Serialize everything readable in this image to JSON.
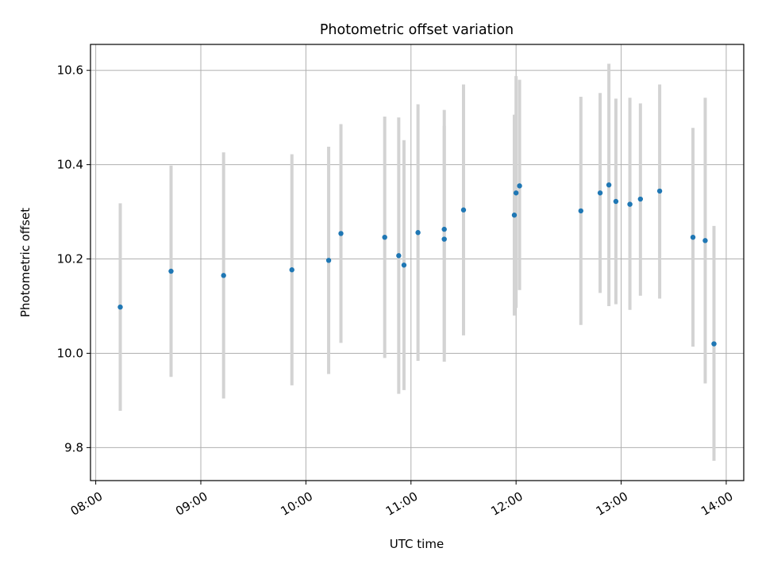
{
  "chart_data": {
    "type": "scatter",
    "title": "Photometric offset variation",
    "xlabel": "UTC time",
    "ylabel": "Photometric offset",
    "x_tick_labels": [
      "08:00",
      "09:00",
      "10:00",
      "11:00",
      "12:00",
      "13:00",
      "14:00"
    ],
    "y_tick_labels": [
      "9.8",
      "10.0",
      "10.2",
      "10.4",
      "10.6"
    ],
    "y_ticks": [
      9.8,
      10.0,
      10.2,
      10.4,
      10.6
    ],
    "xlim": [
      "07:57",
      "14:10"
    ],
    "ylim": [
      9.73,
      10.655
    ],
    "grid": true,
    "marker_color": "#1f77b4",
    "errorbar_color": "#d3d3d3",
    "series": [
      {
        "points": [
          {
            "x": "08:14",
            "y": 10.098,
            "lo": 9.878,
            "hi": 10.318
          },
          {
            "x": "08:43",
            "y": 10.174,
            "lo": 9.95,
            "hi": 10.398
          },
          {
            "x": "09:13",
            "y": 10.165,
            "lo": 9.904,
            "hi": 10.426
          },
          {
            "x": "09:52",
            "y": 10.177,
            "lo": 9.932,
            "hi": 10.422
          },
          {
            "x": "10:13",
            "y": 10.197,
            "lo": 9.956,
            "hi": 10.438
          },
          {
            "x": "10:20",
            "y": 10.254,
            "lo": 10.022,
            "hi": 10.486
          },
          {
            "x": "10:45",
            "y": 10.246,
            "lo": 9.99,
            "hi": 10.502
          },
          {
            "x": "10:53",
            "y": 10.207,
            "lo": 9.914,
            "hi": 10.5
          },
          {
            "x": "10:56",
            "y": 10.187,
            "lo": 9.922,
            "hi": 10.452
          },
          {
            "x": "11:04",
            "y": 10.256,
            "lo": 9.984,
            "hi": 10.528
          },
          {
            "x": "11:19",
            "y": 10.242,
            "lo": 10.002,
            "hi": 10.482
          },
          {
            "x": "11:19",
            "y": 10.263,
            "lo": 9.982,
            "hi": 10.516
          },
          {
            "x": "11:30",
            "y": 10.304,
            "lo": 10.038,
            "hi": 10.57
          },
          {
            "x": "11:59",
            "y": 10.293,
            "lo": 10.08,
            "hi": 10.506
          },
          {
            "x": "12:00",
            "y": 10.34,
            "lo": 10.096,
            "hi": 10.588
          },
          {
            "x": "12:02",
            "y": 10.355,
            "lo": 10.134,
            "hi": 10.58
          },
          {
            "x": "12:37",
            "y": 10.302,
            "lo": 10.06,
            "hi": 10.544
          },
          {
            "x": "12:48",
            "y": 10.34,
            "lo": 10.128,
            "hi": 10.552
          },
          {
            "x": "12:53",
            "y": 10.357,
            "lo": 10.1,
            "hi": 10.614
          },
          {
            "x": "12:57",
            "y": 10.322,
            "lo": 10.104,
            "hi": 10.54
          },
          {
            "x": "13:05",
            "y": 10.316,
            "lo": 10.092,
            "hi": 10.542
          },
          {
            "x": "13:11",
            "y": 10.327,
            "lo": 10.122,
            "hi": 10.53
          },
          {
            "x": "13:22",
            "y": 10.344,
            "lo": 10.116,
            "hi": 10.57
          },
          {
            "x": "13:41",
            "y": 10.246,
            "lo": 10.014,
            "hi": 10.478
          },
          {
            "x": "13:48",
            "y": 10.239,
            "lo": 9.936,
            "hi": 10.542
          },
          {
            "x": "13:53",
            "y": 10.02,
            "lo": 9.772,
            "hi": 10.27
          }
        ]
      }
    ]
  }
}
